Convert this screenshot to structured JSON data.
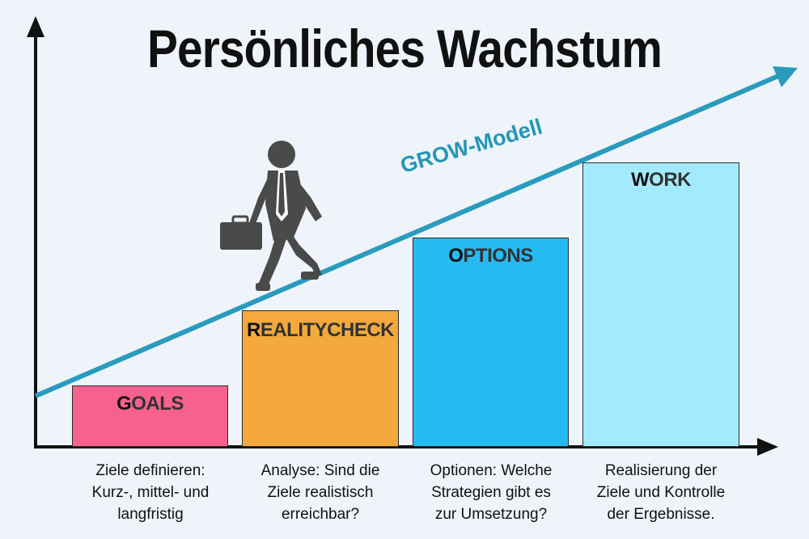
{
  "title": "Persönliches Wachstum",
  "model_label": "GROW-Modell",
  "colors": {
    "axis": "#111111",
    "arrow": "#2a9bbd",
    "figure": "#4a4a4a",
    "background": "#eef4f9"
  },
  "steps": [
    {
      "letter": "G",
      "rest": "OALS",
      "color": "#f8618f",
      "description": [
        "Ziele definieren:",
        "Kurz-, mittel- und",
        "langfristig"
      ]
    },
    {
      "letter": "R",
      "rest": "EALITYCHECK",
      "color": "#f3a93d",
      "description": [
        "Analyse: Sind die",
        "Ziele realistisch",
        "erreichbar?"
      ]
    },
    {
      "letter": "O",
      "rest": "PTIONS",
      "color": "#26baf2",
      "description": [
        "Optionen: Welche",
        "Strategien gibt es",
        "zur Umsetzung?"
      ]
    },
    {
      "letter": "W",
      "rest": "ORK",
      "color": "#a3ebfc",
      "description": [
        "Realisierung der",
        "Ziele und Kontrolle",
        "der Ergebnisse."
      ]
    }
  ]
}
